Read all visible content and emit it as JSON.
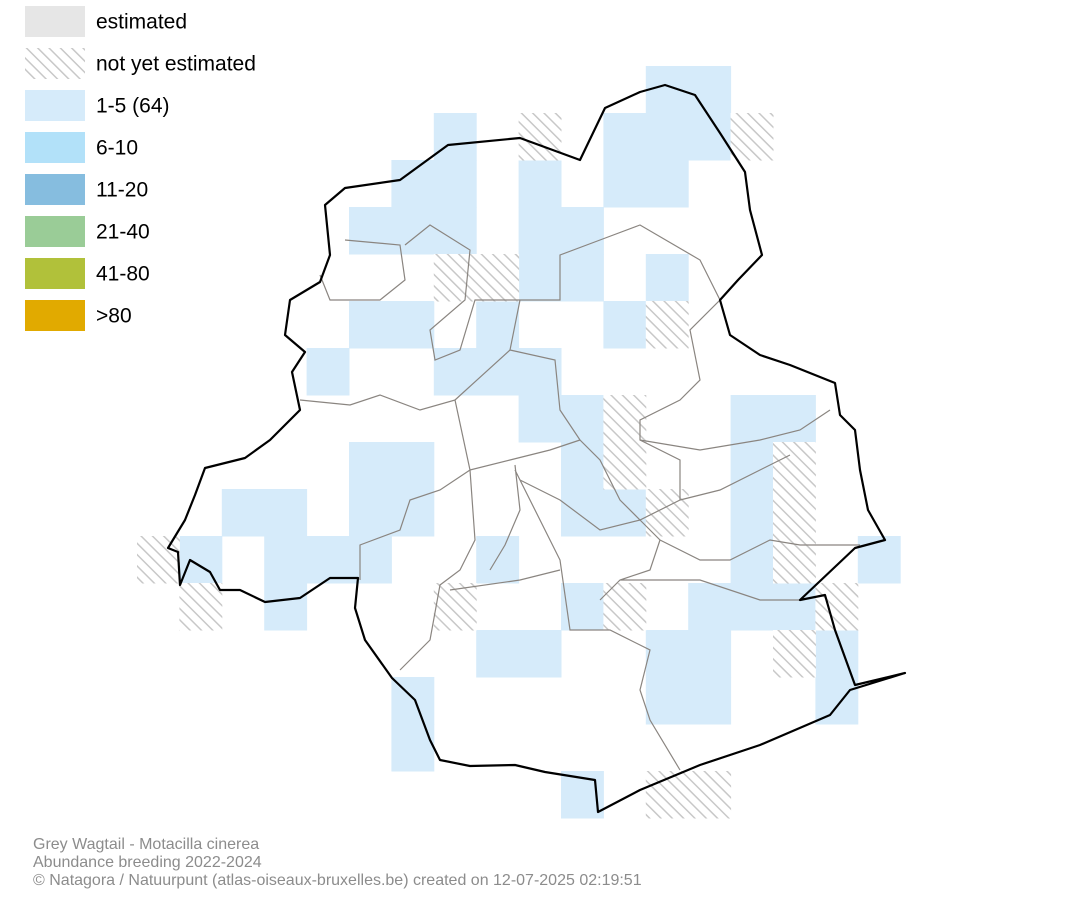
{
  "legend": {
    "items": [
      {
        "label": "estimated",
        "color": "#e6e6e6"
      },
      {
        "label": "not yet estimated"
      },
      {
        "label": "1-5 (64)",
        "color": "#d6ebfa"
      },
      {
        "label": "6-10",
        "color": "#b2e1f9"
      },
      {
        "label": "11-20",
        "color": "#86bddf"
      },
      {
        "label": "21-40",
        "color": "#9acc97"
      },
      {
        "label": "41-80",
        "color": "#b1c13a"
      },
      {
        "label": ">80",
        "color": "#e1aa00"
      }
    ]
  },
  "footer": {
    "lines": [
      "Grey Wagtail - Motacilla cinerea",
      "Abundance breeding 2022-2024",
      "© Natagora / Natuurpunt (atlas-oiseaux-bruxelles.be) created on 12-07-2025 02:19:51"
    ]
  }
}
